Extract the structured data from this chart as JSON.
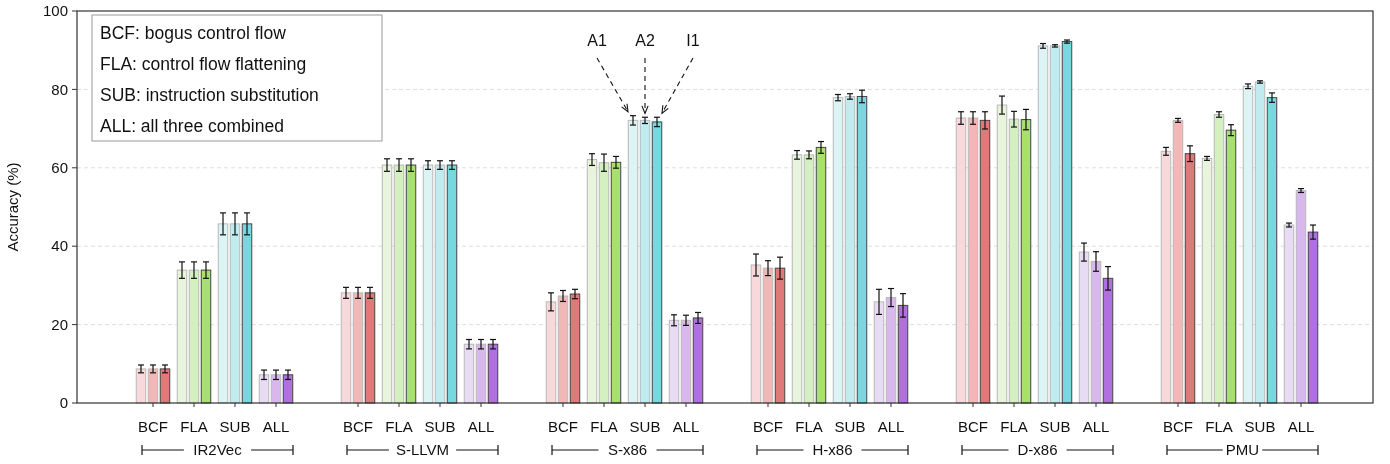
{
  "chart_data": {
    "type": "bar",
    "ylabel": "Accuracy (%)",
    "ylim": [
      0,
      100
    ],
    "yticks": [
      0,
      20,
      40,
      60,
      80,
      100
    ],
    "grid": "y",
    "categories": [
      "BCF",
      "FLA",
      "SUB",
      "ALL",
      null,
      "BCF",
      "FLA",
      "SUB",
      "ALL",
      null,
      "BCF",
      "FLA",
      "SUB",
      "ALL",
      null,
      "BCF",
      "FLA",
      "SUB",
      "ALL",
      null,
      "BCF",
      "FLA",
      "SUB",
      "ALL",
      null,
      "BCF",
      "FLA",
      "SUB",
      "ALL"
    ],
    "annotations": [
      "BCF: bogus control flow",
      "FLA: control flow flattening",
      "SUB: instruction substitution",
      "ALL: all three combined",
      "IR2Vec",
      "S-LLVM",
      "S-x86",
      "H-x86",
      "D-x86",
      "PMU"
    ],
    "series": [
      {
        "name": "A1",
        "colors": [
          "#f8d8da",
          "#e8f4dc",
          "#dcf4f4",
          "#e8dcf4",
          null,
          "#f8d8da",
          "#e8f4dc",
          "#dcf4f4",
          "#e8dcf4",
          null,
          "#f8d8da",
          "#e8f4dc",
          "#dcf4f4",
          "#e8dcf4",
          null,
          "#f8d8da",
          "#e8f4dc",
          "#dcf4f4",
          "#e8dcf4",
          null,
          "#f8d8da",
          "#e8f4dc",
          "#dcf4f4",
          "#e8dcf4",
          null,
          "#f8d8da",
          "#e8f4dc",
          "#dcf4f4",
          "#e8dcf4"
        ],
        "values": [
          8.7,
          33.9,
          45.7,
          7.2,
          null,
          28.1,
          60.7,
          60.7,
          15.0,
          null,
          25.8,
          62.1,
          72.1,
          21.1,
          null,
          35.2,
          63.3,
          77.9,
          25.8,
          null,
          72.7,
          76.0,
          91.1,
          38.5,
          null,
          64.2,
          62.4,
          80.8,
          45.4
        ],
        "errors": [
          1.0,
          2.1,
          2.8,
          1.2,
          null,
          1.4,
          1.6,
          1.1,
          1.2,
          null,
          2.3,
          1.5,
          1.2,
          1.4,
          null,
          2.8,
          1.1,
          0.8,
          3.2,
          null,
          1.6,
          2.3,
          0.6,
          2.3,
          null,
          1.0,
          0.5,
          0.6,
          0.5
        ]
      },
      {
        "name": "A2",
        "colors": [
          "#f2b8b8",
          "#d4f0c0",
          "#c0ecf0",
          "#d8b8ec",
          null,
          "#f2b8b8",
          "#d4f0c0",
          "#c0ecf0",
          "#d8b8ec",
          null,
          "#f2b8b8",
          "#d4f0c0",
          "#c0ecf0",
          "#d8b8ec",
          null,
          "#f2b8b8",
          "#d4f0c0",
          "#c0ecf0",
          "#d8b8ec",
          null,
          "#f2b8b8",
          "#d4f0c0",
          "#c0ecf0",
          "#d8b8ec",
          null,
          "#f2b8b8",
          "#d4f0c0",
          "#c0ecf0",
          "#d8b8ec"
        ],
        "values": [
          8.7,
          33.9,
          45.7,
          7.2,
          null,
          28.1,
          60.7,
          60.7,
          15.0,
          null,
          27.3,
          61.3,
          72.1,
          21.1,
          null,
          34.4,
          63.3,
          78.2,
          26.9,
          null,
          72.7,
          72.4,
          91.1,
          36.1,
          null,
          72.1,
          73.6,
          81.9,
          54.2
        ],
        "errors": [
          1.0,
          2.1,
          2.8,
          1.2,
          null,
          1.4,
          1.6,
          1.1,
          1.2,
          null,
          1.4,
          2.2,
          0.8,
          1.3,
          null,
          1.9,
          1.0,
          0.7,
          2.3,
          null,
          1.6,
          2.0,
          0.3,
          2.5,
          null,
          0.5,
          0.7,
          0.3,
          0.5
        ]
      },
      {
        "name": "I1",
        "colors": [
          "#e07a78",
          "#a8e070",
          "#78d8e0",
          "#b070e0",
          null,
          "#e07a78",
          "#a8e070",
          "#78d8e0",
          "#b070e0",
          null,
          "#e07a78",
          "#a8e070",
          "#78d8e0",
          "#b070e0",
          null,
          "#e07a78",
          "#a8e070",
          "#78d8e0",
          "#b070e0",
          null,
          "#e07a78",
          "#a8e070",
          "#78d8e0",
          "#b070e0",
          null,
          "#e07a78",
          "#a8e070",
          "#78d8e0",
          "#b070e0"
        ],
        "values": [
          8.7,
          33.9,
          45.7,
          7.2,
          null,
          28.1,
          60.7,
          60.7,
          15.0,
          null,
          27.8,
          61.4,
          71.7,
          21.7,
          null,
          34.4,
          65.2,
          78.2,
          24.9,
          null,
          72.1,
          72.3,
          92.2,
          31.8,
          null,
          63.6,
          69.6,
          77.9,
          43.6
        ],
        "errors": [
          1.0,
          2.1,
          2.8,
          1.2,
          null,
          1.4,
          1.6,
          1.1,
          1.2,
          null,
          1.2,
          1.5,
          1.2,
          1.4,
          null,
          2.8,
          1.5,
          1.6,
          3.0,
          null,
          2.2,
          2.6,
          0.4,
          3.0,
          null,
          2.0,
          1.4,
          1.2,
          1.8
        ]
      }
    ]
  }
}
